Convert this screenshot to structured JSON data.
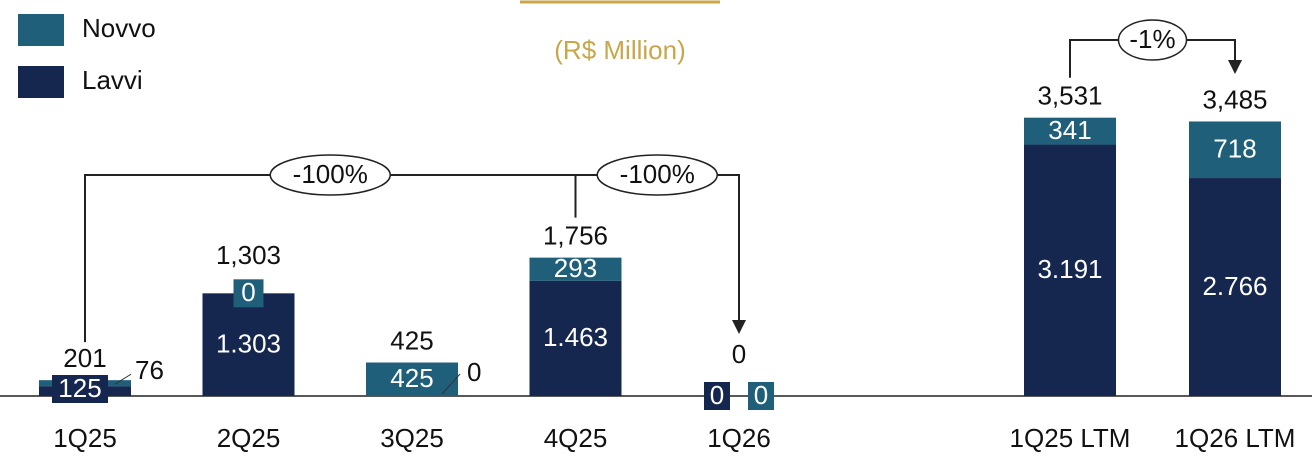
{
  "chart_data": {
    "type": "stacked_bar",
    "subtitle": "(R$ Million)",
    "categories": [
      "1Q25",
      "2Q25",
      "3Q25",
      "4Q25",
      "1Q26",
      "1Q25 LTM",
      "1Q26 LTM"
    ],
    "series": [
      {
        "name": "Lavvi",
        "color": "#15264f",
        "values": [
          125,
          1303,
          0,
          1463,
          0,
          3191,
          2766
        ],
        "value_labels": [
          "125",
          "1.303",
          "0",
          "1.463",
          "0",
          "3.191",
          "2.766"
        ]
      },
      {
        "name": "Novvo",
        "color": "#1f5f7a",
        "values": [
          76,
          0,
          425,
          293,
          0,
          341,
          718
        ]
      }
    ],
    "totals": [
      201,
      1303,
      425,
      1756,
      0,
      3531,
      3485
    ],
    "total_labels": [
      "201",
      "1,303",
      "425",
      "1,756",
      "0",
      "3,531",
      "3,485"
    ],
    "annotations": [
      "-100%",
      "-100%",
      "-1%"
    ],
    "ylim": [
      0,
      5000
    ]
  }
}
